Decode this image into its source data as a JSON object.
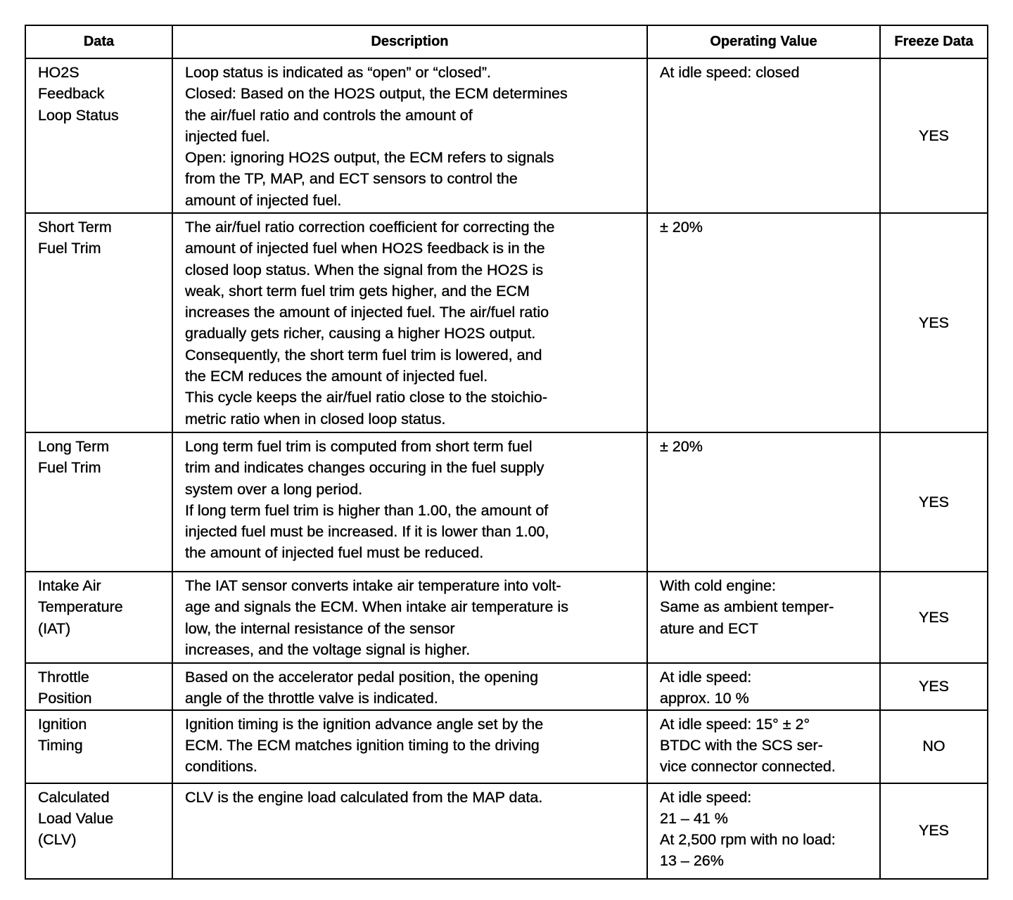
{
  "headers": [
    "Data",
    "Description",
    "Operating Value",
    "Freeze Data"
  ],
  "rows": [
    {
      "data": "HO2S\nFeedback\nLoop Status",
      "description": "Loop status is indicated as “open” or “closed”.\nClosed: Based on the HO2S output, the ECM determines\nthe air/fuel ratio and controls the amount of\ninjected fuel.\nOpen: ignoring HO2S output, the ECM refers to signals\nfrom the TP, MAP, and ECT sensors to control the\namount of injected fuel.",
      "operating": "At idle speed: closed",
      "freeze": "YES"
    },
    {
      "data": "Short Term\nFuel Trim",
      "description": "The air/fuel ratio correction coefficient for correcting the\namount of injected fuel when HO2S feedback is in the\nclosed loop status. When the signal from the HO2S is\nweak, short term fuel trim gets higher, and the ECM\nincreases the amount of injected fuel. The air/fuel ratio\ngradually gets richer, causing a higher HO2S output.\nConsequently, the short term fuel trim is lowered, and\nthe ECM reduces the amount of injected fuel.\nThis cycle keeps the air/fuel ratio close to the stoichio-\nmetric ratio when in closed loop status.",
      "operating": "± 20%",
      "freeze": "YES"
    },
    {
      "data": "Long Term\nFuel Trim",
      "description": "Long term fuel trim is computed from short term fuel\ntrim and indicates changes occuring in the fuel supply\nsystem over a long period.\nIf long term fuel trim is higher than 1.00, the amount of\ninjected fuel must be increased. If it is lower than 1.00,\nthe amount of injected fuel must be reduced.",
      "operating": "± 20%",
      "freeze": "YES"
    },
    {
      "data": "Intake Air\nTemperature\n(IAT)",
      "description": "The IAT sensor converts intake air temperature into volt-\nage and signals the ECM. When intake air temperature is\nlow, the internal resistance of the sensor\nincreases, and the voltage signal is higher.",
      "operating": "With cold engine:\nSame as ambient temper-\nature and ECT",
      "freeze": "YES"
    },
    {
      "data": "Throttle\nPosition",
      "description": "Based on the accelerator pedal position, the opening\nangle of the throttle valve is indicated.",
      "operating": "At idle speed:\napprox. 10 %",
      "freeze": "YES"
    },
    {
      "data": "Ignition\nTiming",
      "description": "Ignition timing is the ignition advance angle set by the\nECM. The ECM matches ignition timing to the driving\nconditions.",
      "operating": "At idle speed: 15° ± 2°\nBTDC with the SCS ser-\nvice connector connected.",
      "freeze": "NO"
    },
    {
      "data": "Calculated\nLoad Value\n(CLV)",
      "description": "CLV is the engine load calculated from the MAP data.",
      "operating": "At idle speed:\n21 – 41 %\nAt 2,500 rpm with no load:\n13 – 26%",
      "freeze": "YES"
    }
  ]
}
